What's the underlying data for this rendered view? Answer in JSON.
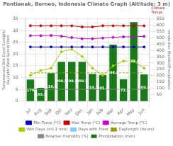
{
  "chart_data": {
    "type": "bar",
    "title": "Pontianak, Borneo, Indonesia Climate Graph (Altitude: 3 m)",
    "ylabel": "Temperature/ Wet Days/ Sunlight/ Daylight/ Wind Speed/ Frost",
    "y2label": "mm/inches (Rainfall/Precipitation)",
    "annotations": [
      "Climate\nTemps"
    ],
    "categories": [
      "Jul",
      "Aug",
      "Sep",
      "Oct",
      "Nov",
      "Dec",
      "Jan",
      "Feb",
      "Mar",
      "Apr",
      "May",
      "Jun"
    ],
    "series": [
      {
        "name": "Precipitation (mm)",
        "type": "bar",
        "axis": "y2",
        "color": "#1a7a1a",
        "data_labels": true,
        "values": [
          170,
          103.9,
          219.6,
          309.5,
          309.5,
          309.5,
          214.1,
          205.8,
          444.8,
          172.2,
          622.8,
          209.8
        ]
      },
      {
        "name": "Min Temp (°C)",
        "type": "line",
        "color": "#0000cc",
        "marker": "circle",
        "line_style": "solid",
        "values": [
          23,
          23,
          23,
          23,
          23,
          23,
          23,
          23,
          23,
          23,
          23,
          23
        ]
      },
      {
        "name": "Max Temp (°C)",
        "type": "line",
        "color": "#cc0000",
        "marker": "circle",
        "line_style": "solid",
        "values": [
          32,
          32,
          32,
          32,
          32,
          31.5,
          31.5,
          32,
          32,
          32,
          32,
          32
        ]
      },
      {
        "name": "Average Temp (°C)",
        "type": "line",
        "color": "#cc00cc",
        "marker": "circle",
        "line_style": "solid",
        "values": [
          27.8,
          27.8,
          27.9,
          27.6,
          27.0,
          26.5,
          26.5,
          26.8,
          27.1,
          27.3,
          27.3,
          27.5
        ]
      },
      {
        "name": "Wet Days (>0.1 mm)",
        "type": "line",
        "color": "#aacc00",
        "marker": "circle",
        "line_style": "solid",
        "values": [
          11,
          13,
          14,
          21,
          22,
          19,
          14,
          11,
          15,
          17,
          17,
          14
        ]
      },
      {
        "name": "Days with Frost",
        "type": "line",
        "color": "#88ccff",
        "marker": "none",
        "line_style": "solid",
        "values": [
          null,
          null,
          null,
          null,
          null,
          null,
          null,
          null,
          null,
          null,
          null,
          null
        ]
      },
      {
        "name": "Daylength (hours)",
        "type": "line",
        "color": "#999900",
        "marker": "none",
        "line_style": "dashed",
        "values": [
          12,
          12,
          12,
          12,
          12,
          12,
          12,
          12,
          12,
          12,
          12,
          12
        ]
      },
      {
        "name": "Relative Humidity (%)",
        "type": "line",
        "color": "#888888",
        "marker": "none",
        "line_style": "solid",
        "values": [
          5,
          5,
          5,
          5,
          5,
          5,
          5,
          5,
          5,
          5,
          5,
          5
        ]
      }
    ],
    "ylim": [
      0,
      35
    ],
    "yticks": [
      0,
      5,
      10,
      15,
      20,
      25,
      30,
      35
    ],
    "y2lim": [
      0,
      650
    ],
    "y2ticks": [
      50,
      100,
      150,
      200,
      250,
      300,
      350,
      400,
      450,
      500,
      550,
      600,
      650
    ],
    "grid": true,
    "legend": "bottom"
  }
}
